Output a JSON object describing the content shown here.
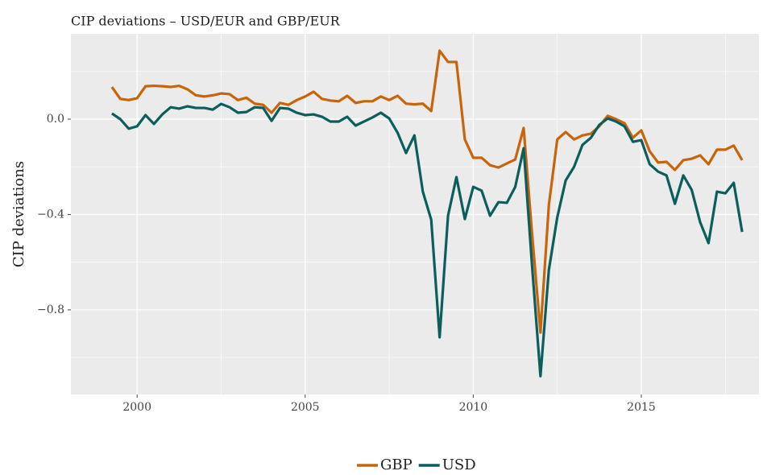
{
  "chart_data": {
    "type": "line",
    "title": "CIP deviations – USD/EUR and GBP/EUR",
    "y_label": "CIP deviations",
    "x": [
      1999.25,
      1999.5,
      1999.75,
      2000,
      2000.25,
      2000.5,
      2000.75,
      2001,
      2001.25,
      2001.5,
      2001.75,
      2002,
      2002.25,
      2002.5,
      2002.75,
      2003,
      2003.25,
      2003.5,
      2003.75,
      2004,
      2004.25,
      2004.5,
      2004.75,
      2005,
      2005.25,
      2005.5,
      2005.75,
      2006,
      2006.25,
      2006.5,
      2006.75,
      2007,
      2007.25,
      2007.5,
      2007.75,
      2008,
      2008.25,
      2008.5,
      2008.75,
      2009,
      2009.25,
      2009.5,
      2009.75,
      2010,
      2010.25,
      2010.5,
      2010.75,
      2011,
      2011.25,
      2011.5,
      2011.75,
      2012,
      2012.25,
      2012.5,
      2012.75,
      2013,
      2013.25,
      2013.5,
      2013.75,
      2014,
      2014.25,
      2014.5,
      2014.75,
      2015,
      2015.25,
      2015.5,
      2015.75,
      2016,
      2016.25,
      2016.5,
      2016.75,
      2017,
      2017.25,
      2017.5,
      2017.75,
      2018
    ],
    "series": [
      {
        "name": "GBP",
        "color": "#c8650a",
        "values": [
          0.135,
          0.085,
          0.08,
          0.088,
          0.138,
          0.14,
          0.138,
          0.135,
          0.14,
          0.125,
          0.1,
          0.095,
          0.1,
          0.108,
          0.105,
          0.08,
          0.09,
          0.065,
          0.06,
          0.027,
          0.068,
          0.06,
          0.08,
          0.095,
          0.115,
          0.085,
          0.078,
          0.075,
          0.098,
          0.068,
          0.075,
          0.075,
          0.095,
          0.08,
          0.098,
          0.065,
          0.062,
          0.065,
          0.034,
          0.287,
          0.24,
          0.24,
          -0.085,
          -0.162,
          -0.162,
          -0.193,
          -0.203,
          -0.186,
          -0.169,
          -0.037,
          -0.48,
          -0.895,
          -0.36,
          -0.085,
          -0.054,
          -0.085,
          -0.068,
          -0.061,
          -0.03,
          0.014,
          0.0,
          -0.017,
          -0.078,
          -0.047,
          -0.135,
          -0.182,
          -0.179,
          -0.213,
          -0.172,
          -0.166,
          -0.152,
          -0.189,
          -0.128,
          -0.128,
          -0.111,
          -0.172
        ]
      },
      {
        "name": "USD",
        "color": "#0b5e5c",
        "values": [
          0.024,
          0.0,
          -0.04,
          -0.03,
          0.017,
          -0.02,
          0.02,
          0.05,
          0.044,
          0.054,
          0.047,
          0.047,
          0.04,
          0.064,
          0.05,
          0.027,
          0.03,
          0.05,
          0.047,
          -0.007,
          0.047,
          0.044,
          0.027,
          0.017,
          0.02,
          0.01,
          -0.01,
          -0.01,
          0.01,
          -0.027,
          -0.01,
          0.007,
          0.027,
          0.003,
          -0.057,
          -0.142,
          -0.068,
          -0.304,
          -0.422,
          -0.915,
          -0.405,
          -0.243,
          -0.419,
          -0.284,
          -0.3,
          -0.405,
          -0.348,
          -0.351,
          -0.284,
          -0.122,
          -0.615,
          -1.078,
          -0.632,
          -0.412,
          -0.257,
          -0.2,
          -0.108,
          -0.078,
          -0.024,
          0.003,
          -0.01,
          -0.03,
          -0.095,
          -0.088,
          -0.189,
          -0.22,
          -0.236,
          -0.355,
          -0.236,
          -0.297,
          -0.432,
          -0.52,
          -0.304,
          -0.311,
          -0.267,
          -0.473
        ]
      }
    ],
    "xlim": [
      1998.03,
      2018.5
    ],
    "xticks": [
      2000,
      2005,
      2010,
      2015
    ],
    "x_minor_ticks": [
      2002.5,
      2007.5,
      2012.5,
      2017.5
    ],
    "ylim": [
      -1.155,
      0.358
    ],
    "yticks": [
      {
        "value": -0.8,
        "label": "−0.8"
      },
      {
        "value": -0.4,
        "label": "−0.4"
      },
      {
        "value": 0,
        "label": "0.0"
      }
    ],
    "y_minor_ticks": [
      -1.0,
      -0.6,
      -0.2,
      0.2
    ],
    "grid": true,
    "legend": "bottom"
  }
}
